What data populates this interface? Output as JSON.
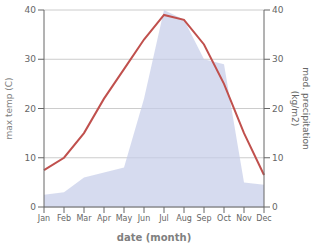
{
  "chart_data": {
    "type": "line",
    "categories": [
      "Jan",
      "Feb",
      "Mar",
      "Apr",
      "May",
      "Jun",
      "Jul",
      "Aug",
      "Sep",
      "Oct",
      "Nov",
      "Dec"
    ],
    "series": [
      {
        "type": "area",
        "axis": "y2",
        "color": "#c5cce8",
        "values": [
          2.5,
          3,
          6,
          7,
          8,
          22,
          40,
          38,
          30,
          29,
          5,
          4.5
        ]
      },
      {
        "type": "line",
        "color": "#c0504d",
        "values": [
          7.5,
          10,
          15,
          22,
          28,
          34,
          39,
          38,
          33,
          25,
          15,
          6.5
        ]
      }
    ],
    "xlabel": "date (month)",
    "ylabel": "max temp (C)",
    "y2label": "med. precipitation\n(kg/m2)",
    "ylim": [
      0,
      40
    ],
    "yticks": [
      0,
      10,
      20,
      30,
      40
    ],
    "y2lim": [
      0,
      40
    ],
    "y2ticks": [
      0,
      10,
      20,
      30,
      40
    ],
    "grid": true
  }
}
